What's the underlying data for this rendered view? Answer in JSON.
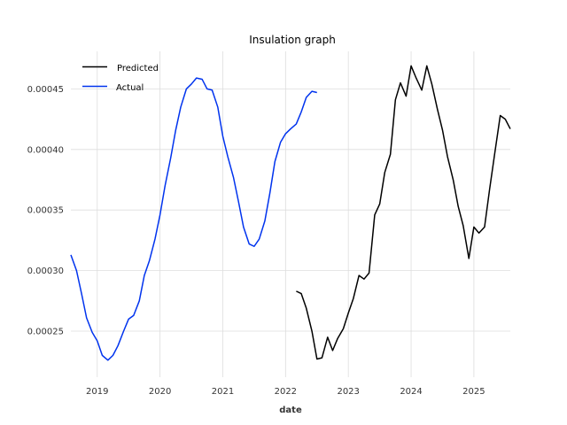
{
  "chart_data": {
    "type": "line",
    "title": "Insulation graph",
    "xlabel": "date",
    "ylabel": "",
    "x_ticks": [
      "2019",
      "2020",
      "2021",
      "2022",
      "2023",
      "2024",
      "2025"
    ],
    "x_tick_years": [
      2019,
      2020,
      2021,
      2022,
      2023,
      2024,
      2025
    ],
    "y_ticks": [
      "0.00025",
      "0.00030",
      "0.00035",
      "0.00040",
      "0.00045"
    ],
    "y_tick_values": [
      0.00025,
      0.0003,
      0.00035,
      0.0004,
      0.00045
    ],
    "xlim": [
      2018.58,
      2025.58
    ],
    "ylim": [
      0.000212,
      0.000481
    ],
    "grid": true,
    "legend": "top-left",
    "series": [
      {
        "name": "Predicted",
        "color": "#000000",
        "x": [
          2022.17,
          2022.25,
          2022.33,
          2022.42,
          2022.5,
          2022.58,
          2022.67,
          2022.75,
          2022.83,
          2022.92,
          2023.0,
          2023.08,
          2023.17,
          2023.25,
          2023.33,
          2023.42,
          2023.5,
          2023.58,
          2023.67,
          2023.75,
          2023.83,
          2023.92,
          2024.0,
          2024.08,
          2024.17,
          2024.25,
          2024.33,
          2024.42,
          2024.5,
          2024.58,
          2024.67,
          2024.75,
          2024.83,
          2024.92,
          2025.0,
          2025.08,
          2025.17,
          2025.25,
          2025.33,
          2025.42,
          2025.5,
          2025.58
        ],
        "y": [
          0.000283,
          0.000281,
          0.000269,
          0.00025,
          0.000227,
          0.000228,
          0.000245,
          0.000234,
          0.000244,
          0.000252,
          0.000265,
          0.000277,
          0.000296,
          0.000293,
          0.000298,
          0.000346,
          0.000355,
          0.000381,
          0.000396,
          0.000441,
          0.000455,
          0.000444,
          0.000469,
          0.000459,
          0.000449,
          0.000469,
          0.000454,
          0.000433,
          0.000416,
          0.000394,
          0.000375,
          0.000353,
          0.000337,
          0.00031,
          0.000336,
          0.000331,
          0.000336,
          0.000367,
          0.000396,
          0.000428,
          0.000425,
          0.000417
        ]
      },
      {
        "name": "Actual",
        "color": "#0033ee",
        "x": [
          2018.58,
          2018.67,
          2018.75,
          2018.83,
          2018.92,
          2019.0,
          2019.08,
          2019.17,
          2019.25,
          2019.33,
          2019.42,
          2019.5,
          2019.58,
          2019.67,
          2019.75,
          2019.83,
          2019.92,
          2020.0,
          2020.08,
          2020.17,
          2020.25,
          2020.33,
          2020.42,
          2020.5,
          2020.58,
          2020.67,
          2020.75,
          2020.83,
          2020.92,
          2021.0,
          2021.08,
          2021.17,
          2021.25,
          2021.33,
          2021.42,
          2021.5,
          2021.58,
          2021.67,
          2021.75,
          2021.83,
          2021.92,
          2022.0,
          2022.08,
          2022.17,
          2022.25,
          2022.33,
          2022.42,
          2022.5
        ],
        "y": [
          0.000313,
          0.0003,
          0.000281,
          0.000261,
          0.000249,
          0.000242,
          0.00023,
          0.000226,
          0.00023,
          0.000238,
          0.00025,
          0.00026,
          0.000263,
          0.000275,
          0.000296,
          0.000308,
          0.000326,
          0.000346,
          0.00037,
          0.000393,
          0.000416,
          0.000435,
          0.00045,
          0.000454,
          0.000459,
          0.000458,
          0.00045,
          0.000449,
          0.000435,
          0.000411,
          0.000394,
          0.000377,
          0.000357,
          0.000336,
          0.000322,
          0.00032,
          0.000326,
          0.000341,
          0.000364,
          0.00039,
          0.000406,
          0.000413,
          0.000417,
          0.000421,
          0.000431,
          0.000443,
          0.000448,
          0.000447
        ]
      }
    ]
  }
}
